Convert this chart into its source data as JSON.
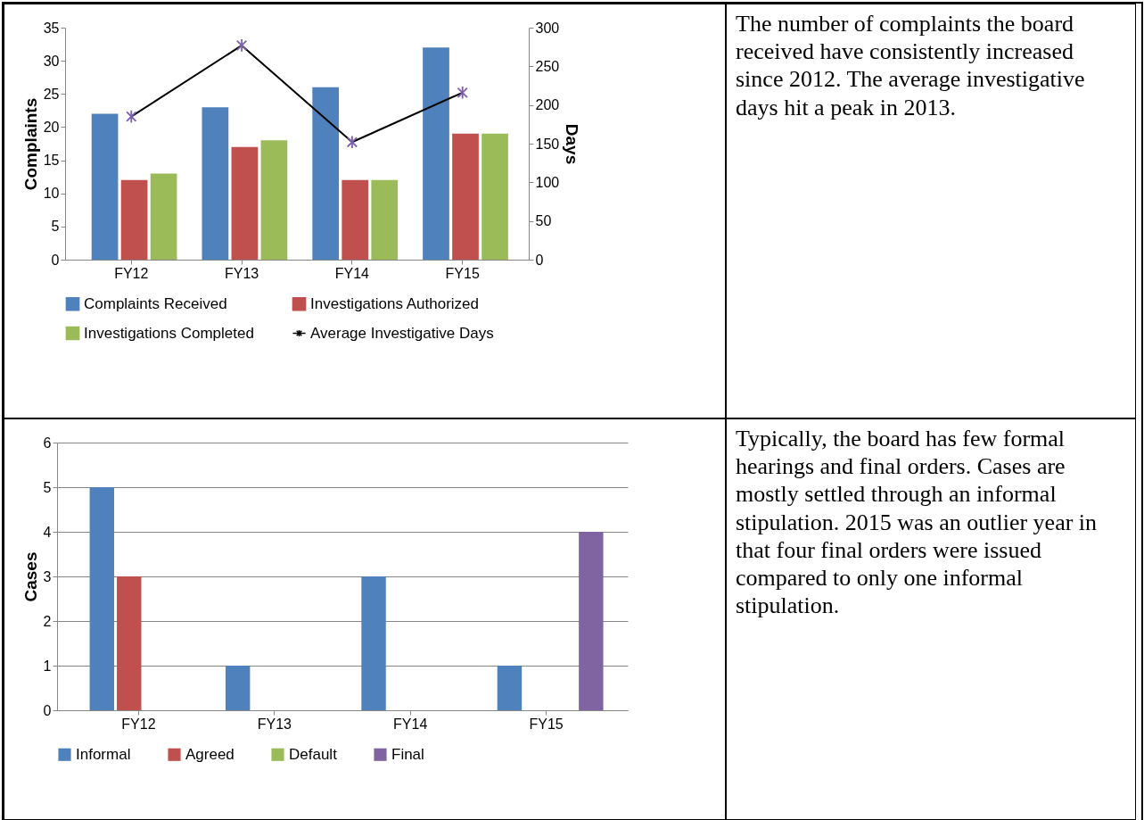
{
  "chart_data": [
    {
      "type": "bar",
      "categories": [
        "FY12",
        "FY13",
        "FY14",
        "FY15"
      ],
      "ylabel": "Complaints",
      "y2label": "Days",
      "ylim": [
        0,
        35
      ],
      "yticks": [
        0,
        5,
        10,
        15,
        20,
        25,
        30,
        35
      ],
      "y2lim": [
        0,
        300
      ],
      "y2ticks": [
        0,
        50,
        100,
        150,
        200,
        250,
        300
      ],
      "grid": false,
      "legend": "bottom",
      "series": [
        {
          "name": "Complaints Received",
          "color": "#4f81bd",
          "values": [
            22,
            23,
            26,
            32
          ]
        },
        {
          "name": "Investigations Authorized",
          "color": "#c0504d",
          "values": [
            12,
            17,
            12,
            19
          ]
        },
        {
          "name": "Investigations Completed",
          "color": "#9bbb59",
          "values": [
            13,
            18,
            12,
            19
          ]
        },
        {
          "name": "Average Investigative Days",
          "type": "line",
          "axis": "y2",
          "color": "#000000",
          "marker": "cross",
          "values": [
            185,
            277,
            152,
            216
          ]
        }
      ]
    },
    {
      "type": "other",
      "annotations": [
        "The number of complaints the board received have consistently increased since 2012. The average investigative days hit a peak in 2013."
      ]
    },
    {
      "type": "bar",
      "categories": [
        "FY12",
        "FY13",
        "FY14",
        "FY15"
      ],
      "ylabel": "Cases",
      "ylim": [
        0,
        6
      ],
      "yticks": [
        0,
        1,
        2,
        3,
        4,
        5,
        6
      ],
      "grid": "y",
      "legend": "bottom",
      "series": [
        {
          "name": "Informal",
          "color": "#4f81bd",
          "values": [
            5,
            1,
            3,
            1
          ]
        },
        {
          "name": "Agreed",
          "color": "#c0504d",
          "values": [
            3,
            0,
            0,
            0
          ]
        },
        {
          "name": "Default",
          "color": "#9bbb59",
          "values": [
            0,
            0,
            0,
            0
          ]
        },
        {
          "name": "Final",
          "color": "#8064a2",
          "values": [
            0,
            0,
            0,
            4
          ]
        }
      ]
    },
    {
      "type": "other",
      "annotations": [
        "Typically, the board has few formal hearings and final orders. Cases are mostly settled through an informal stipulation. 2015 was an outlier year in that four final orders were issued compared to only one informal stipulation."
      ]
    }
  ]
}
